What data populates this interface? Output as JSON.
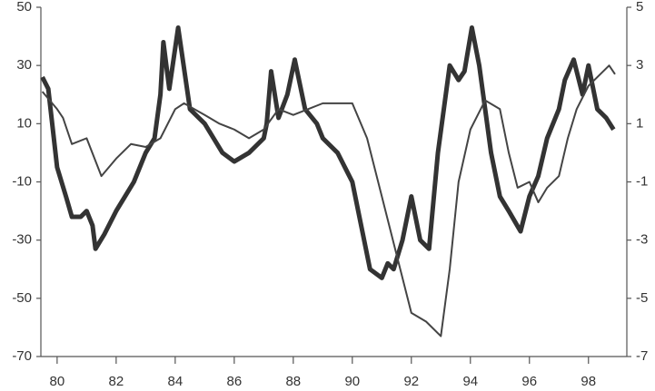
{
  "chart_data": {
    "type": "line",
    "series": [
      {
        "color": "#333333",
        "width": 5,
        "x": [
          79.5,
          79.7,
          80.0,
          80.3,
          80.5,
          80.8,
          81.0,
          81.2,
          81.3,
          81.6,
          82.0,
          82.3,
          82.6,
          83.0,
          83.3,
          83.5,
          83.6,
          83.8,
          84.1,
          84.5,
          85.0,
          85.3,
          85.6,
          86.0,
          86.5,
          87.0,
          87.1,
          87.25,
          87.5,
          87.8,
          88.05,
          88.4,
          88.8,
          89.0,
          89.5,
          90.0,
          90.3,
          90.6,
          91.0,
          91.2,
          91.4,
          91.7,
          92.0,
          92.3,
          92.6,
          92.9,
          93.1,
          93.3,
          93.6,
          93.8,
          94.05,
          94.3,
          94.7,
          95.0,
          95.3,
          95.7,
          96.0,
          96.3,
          96.6,
          97.0,
          97.2,
          97.5,
          97.8,
          98.0,
          98.3,
          98.6,
          98.85
        ],
        "values": [
          26,
          22,
          -5,
          -15,
          -22,
          -22,
          -20,
          -25,
          -33,
          -28,
          -20,
          -15,
          -10,
          0,
          5,
          20,
          38,
          22,
          43,
          15,
          10,
          5,
          0,
          -3,
          0,
          5,
          10,
          28,
          12,
          20,
          32,
          15,
          10,
          5,
          0,
          -10,
          -25,
          -40,
          -43,
          -38,
          -40,
          -30,
          -15,
          -30,
          -33,
          0,
          15,
          30,
          25,
          28,
          43,
          30,
          0,
          -15,
          -20,
          -27,
          -15,
          -8,
          5,
          15,
          25,
          32,
          20,
          30,
          15,
          12,
          8
        ]
      },
      {
        "color": "#444444",
        "width": 2,
        "axis": "y2",
        "x": [
          79.5,
          80.0,
          80.2,
          80.5,
          81.0,
          81.5,
          82.0,
          82.5,
          83.0,
          83.5,
          84.0,
          84.3,
          85.0,
          85.5,
          86.0,
          86.5,
          87.0,
          87.5,
          88.0,
          88.5,
          89.0,
          89.5,
          90.0,
          90.5,
          91.0,
          91.5,
          92.0,
          92.5,
          93.0,
          93.3,
          93.6,
          94.0,
          94.5,
          95.0,
          95.3,
          95.6,
          96.0,
          96.3,
          96.6,
          97.0,
          97.3,
          97.6,
          98.0,
          98.4,
          98.7,
          98.9
        ],
        "values": [
          2.1,
          1.5,
          1.2,
          0.3,
          0.5,
          -0.8,
          -0.2,
          0.3,
          0.2,
          0.5,
          1.5,
          1.7,
          1.3,
          1.0,
          0.8,
          0.5,
          0.8,
          1.5,
          1.3,
          1.5,
          1.7,
          1.7,
          1.7,
          0.5,
          -1.5,
          -3.5,
          -5.5,
          -5.8,
          -6.3,
          -4,
          -1,
          0.8,
          1.8,
          1.5,
          0,
          -1.2,
          -1,
          -1.7,
          -1.2,
          -0.8,
          0.5,
          1.5,
          2.3,
          2.7,
          3.0,
          2.7
        ]
      }
    ],
    "xlim": [
      79.45,
      99.3
    ],
    "xticks": [
      80,
      82,
      84,
      86,
      88,
      90,
      92,
      94,
      96,
      98
    ],
    "ylim": [
      -70,
      50
    ],
    "yticks": [
      -70,
      -50,
      -30,
      -10,
      10,
      30,
      50
    ],
    "y2lim": [
      -7,
      5
    ],
    "y2ticks": [
      -7,
      -5,
      -3,
      -1,
      1,
      3,
      5
    ]
  }
}
